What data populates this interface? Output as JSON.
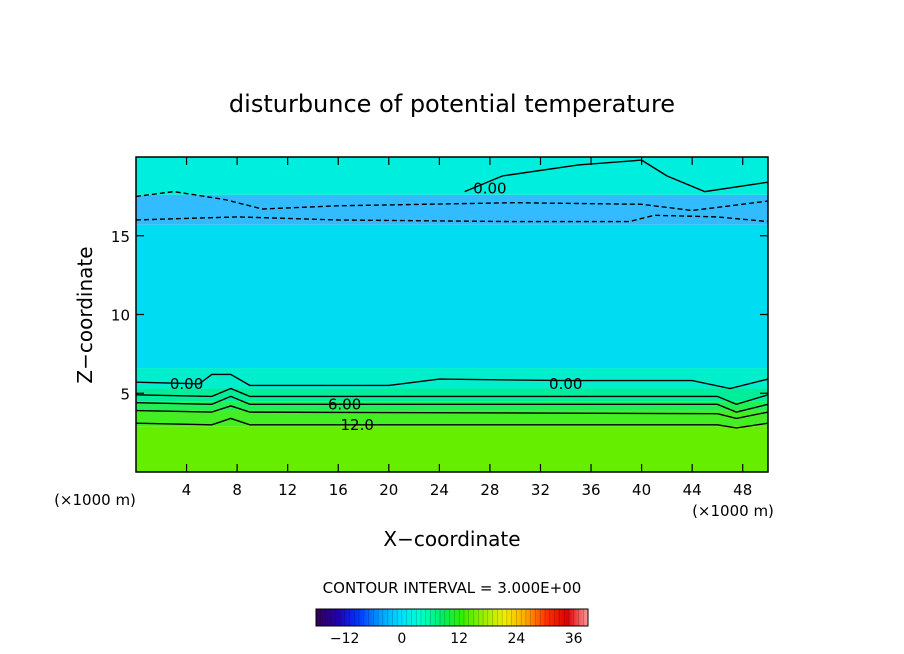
{
  "chart_data": {
    "type": "heatmap",
    "title": "disturbunce of potential temperature",
    "xlabel": "X−coordinate",
    "ylabel": "Z−coordinate",
    "x_unit_left": "(×1000 m)",
    "x_unit_right": "(×1000 m)",
    "xlim": [
      0,
      50
    ],
    "ylim": [
      0,
      20
    ],
    "xticks": [
      4,
      8,
      12,
      16,
      20,
      24,
      28,
      32,
      36,
      40,
      44,
      48
    ],
    "xtick_labels": [
      "4",
      "8",
      "12",
      "16",
      "20",
      "24",
      "28",
      "32",
      "36",
      "40",
      "44",
      "48"
    ],
    "yticks": [
      5,
      10,
      15
    ],
    "ytick_labels": [
      "5",
      "10",
      "15"
    ],
    "contour_interval_text": "CONTOUR INTERVAL = 3.000E+00",
    "contour_interval": 3.0,
    "field_layers": [
      {
        "z_from": 0,
        "z_to": 2.9,
        "value": 15,
        "color": "#66ee00"
      },
      {
        "z_from": 2.9,
        "z_to": 3.9,
        "value": 12,
        "color": "#44ee22"
      },
      {
        "z_from": 3.9,
        "z_to": 4.5,
        "value": 9,
        "color": "#22ee55"
      },
      {
        "z_from": 4.5,
        "z_to": 5.3,
        "value": 6,
        "color": "#00ee99"
      },
      {
        "z_from": 5.3,
        "z_to": 6.6,
        "value": 3,
        "color": "#00eecc"
      },
      {
        "z_from": 6.6,
        "z_to": 15.7,
        "value": 0,
        "color": "#00ddf2"
      },
      {
        "z_from": 15.7,
        "z_to": 17.6,
        "value": -3,
        "color": "#33bbff"
      },
      {
        "z_from": 17.6,
        "z_to": 20,
        "value": 0,
        "color": "#00eedd"
      }
    ],
    "contours": [
      {
        "value": 0,
        "label": "0.00",
        "style": "solid",
        "z_profile": [
          [
            0,
            5.7
          ],
          [
            5,
            5.6
          ],
          [
            6,
            6.2
          ],
          [
            7.5,
            6.2
          ],
          [
            9,
            5.5
          ],
          [
            20,
            5.5
          ],
          [
            24,
            5.9
          ],
          [
            34,
            5.8
          ],
          [
            44,
            5.8
          ],
          [
            47,
            5.3
          ],
          [
            50,
            5.9
          ]
        ],
        "label_positions": [
          [
            4,
            5.6
          ],
          [
            34,
            5.6
          ]
        ]
      },
      {
        "value": 3,
        "label": "",
        "style": "solid",
        "z_profile": [
          [
            0,
            4.9
          ],
          [
            6,
            4.8
          ],
          [
            7.5,
            5.3
          ],
          [
            9,
            4.8
          ],
          [
            46,
            4.8
          ],
          [
            47.5,
            4.3
          ],
          [
            50,
            4.9
          ]
        ],
        "label_positions": []
      },
      {
        "value": 6,
        "label": "6.00",
        "style": "solid",
        "z_profile": [
          [
            0,
            4.4
          ],
          [
            6,
            4.3
          ],
          [
            7.5,
            4.8
          ],
          [
            9,
            4.3
          ],
          [
            46,
            4.3
          ],
          [
            47.5,
            3.8
          ],
          [
            50,
            4.3
          ]
        ],
        "label_positions": [
          [
            16.5,
            4.3
          ]
        ]
      },
      {
        "value": 9,
        "label": "",
        "style": "solid",
        "z_profile": [
          [
            0,
            3.9
          ],
          [
            6,
            3.8
          ],
          [
            7.5,
            4.2
          ],
          [
            9,
            3.8
          ],
          [
            46,
            3.7
          ],
          [
            47.5,
            3.4
          ],
          [
            50,
            3.8
          ]
        ],
        "label_positions": []
      },
      {
        "value": 12,
        "label": "12.0",
        "style": "solid",
        "z_profile": [
          [
            0,
            3.1
          ],
          [
            6,
            3.0
          ],
          [
            7.5,
            3.4
          ],
          [
            9,
            3.0
          ],
          [
            46,
            3.0
          ],
          [
            47.5,
            2.8
          ],
          [
            50,
            3.1
          ]
        ],
        "label_positions": [
          [
            17.5,
            3.0
          ]
        ]
      },
      {
        "value": 0,
        "label": "0.00",
        "style": "solid",
        "z_profile": [
          [
            26,
            17.8
          ],
          [
            29,
            18.8
          ],
          [
            35,
            19.5
          ],
          [
            40,
            19.8
          ],
          [
            42,
            18.8
          ],
          [
            45,
            17.8
          ],
          [
            50,
            18.4
          ]
        ],
        "label_positions": [
          [
            28,
            18.0
          ]
        ]
      },
      {
        "value": -3,
        "label": "",
        "style": "dashed",
        "z_profile": [
          [
            0,
            17.5
          ],
          [
            3,
            17.8
          ],
          [
            7,
            17.3
          ],
          [
            10,
            16.7
          ],
          [
            16,
            16.9
          ],
          [
            30,
            17.1
          ],
          [
            40,
            17.0
          ],
          [
            44,
            16.6
          ],
          [
            50,
            17.2
          ]
        ],
        "label_positions": []
      },
      {
        "value": -3,
        "label": "",
        "style": "dashed",
        "z_profile": [
          [
            0,
            16.0
          ],
          [
            4,
            16.1
          ],
          [
            8,
            16.2
          ],
          [
            16,
            16.0
          ],
          [
            30,
            15.9
          ],
          [
            39,
            15.9
          ],
          [
            41,
            16.3
          ],
          [
            46,
            16.2
          ],
          [
            50,
            15.9
          ]
        ],
        "label_positions": []
      }
    ],
    "colorbar": {
      "min": -18,
      "max": 39,
      "ticks": [
        -12,
        0,
        12,
        24,
        36
      ],
      "tick_labels": [
        "−12",
        "0",
        "12",
        "24",
        "36"
      ],
      "colors": [
        "#330055",
        "#2200aa",
        "#0033ff",
        "#0099ff",
        "#00ddff",
        "#00ffcc",
        "#00ee66",
        "#33ee00",
        "#99ee00",
        "#eeee00",
        "#ffaa00",
        "#ff3300",
        "#dd0000",
        "#ff9999"
      ]
    }
  }
}
